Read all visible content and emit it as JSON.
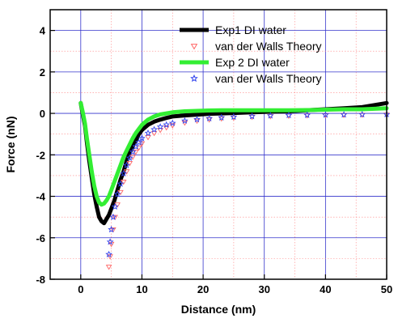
{
  "chart_data": {
    "type": "line",
    "xlabel": "Distance (nm)",
    "ylabel": "Force (nN)",
    "xlim": [
      -5,
      50
    ],
    "ylim": [
      -8,
      5
    ],
    "x_ticks": [
      0,
      10,
      20,
      30,
      40,
      50
    ],
    "y_ticks": [
      4,
      2,
      0,
      -2,
      -4,
      -6,
      -8
    ],
    "grid": true,
    "legend_position": "top-right",
    "series": [
      {
        "name": "Exp1 DI water",
        "style": "thick-line",
        "color": "#000000",
        "x": [
          0,
          0.3,
          0.7,
          1.0,
          1.4,
          1.8,
          2.2,
          2.6,
          3.0,
          3.4,
          3.8,
          4.2,
          4.6,
          5.0,
          5.5,
          6,
          6.5,
          7,
          7.5,
          8,
          8.5,
          9,
          9.5,
          10,
          11,
          12,
          13,
          14,
          15,
          17,
          19,
          21,
          23,
          25,
          28,
          31,
          34,
          37,
          40,
          43,
          46,
          48,
          50
        ],
        "y": [
          0.5,
          0.0,
          -0.6,
          -1.4,
          -2.3,
          -3.1,
          -3.9,
          -4.5,
          -5.0,
          -5.2,
          -5.3,
          -5.1,
          -4.9,
          -4.6,
          -4.2,
          -3.7,
          -3.2,
          -2.8,
          -2.3,
          -1.9,
          -1.6,
          -1.3,
          -1.0,
          -0.8,
          -0.55,
          -0.4,
          -0.3,
          -0.22,
          -0.15,
          -0.1,
          -0.06,
          -0.02,
          0.0,
          0.02,
          0.05,
          0.08,
          0.1,
          0.15,
          0.2,
          0.25,
          0.3,
          0.4,
          0.5
        ]
      },
      {
        "name": "van der Walls Theory",
        "style": "triangle-markers",
        "color": "#ff6666",
        "x": [
          4.6,
          4.8,
          5.0,
          5.3,
          5.6,
          6.0,
          6.5,
          7,
          7.5,
          8,
          8.5,
          9,
          9.5,
          10,
          11,
          12,
          13,
          14,
          15,
          17,
          19,
          21,
          23,
          25,
          28,
          31,
          34,
          37,
          40,
          43,
          46,
          50
        ],
        "y": [
          -7.4,
          -6.9,
          -6.3,
          -5.6,
          -5.0,
          -4.4,
          -3.8,
          -3.3,
          -2.8,
          -2.4,
          -2.1,
          -1.85,
          -1.65,
          -1.45,
          -1.15,
          -0.95,
          -0.8,
          -0.68,
          -0.58,
          -0.45,
          -0.36,
          -0.3,
          -0.25,
          -0.21,
          -0.17,
          -0.14,
          -0.12,
          -0.1,
          -0.09,
          -0.08,
          -0.07,
          -0.06
        ]
      },
      {
        "name": "Exp 2 DI water",
        "style": "thick-line",
        "color": "#33ee33",
        "x": [
          0,
          0.3,
          0.7,
          1.0,
          1.4,
          1.8,
          2.2,
          2.6,
          3.0,
          3.4,
          3.8,
          4.2,
          4.6,
          5.0,
          5.5,
          6,
          6.5,
          7,
          7.5,
          8,
          8.5,
          9,
          9.5,
          10,
          11,
          12,
          13,
          14,
          15,
          17,
          19,
          21,
          23,
          25,
          28,
          31,
          34,
          37,
          40,
          43,
          46,
          48,
          50
        ],
        "y": [
          0.5,
          0.1,
          -0.5,
          -1.2,
          -2.0,
          -2.8,
          -3.5,
          -4.0,
          -4.3,
          -4.4,
          -4.35,
          -4.2,
          -4.0,
          -3.7,
          -3.3,
          -2.9,
          -2.5,
          -2.1,
          -1.8,
          -1.5,
          -1.2,
          -0.95,
          -0.75,
          -0.55,
          -0.3,
          -0.15,
          -0.05,
          0.0,
          0.05,
          0.1,
          0.12,
          0.14,
          0.15,
          0.15,
          0.15,
          0.15,
          0.15,
          0.16,
          0.18,
          0.2,
          0.2,
          0.22,
          0.25
        ]
      },
      {
        "name": "van der Walls Theory",
        "style": "star-markers",
        "color": "#3344ee",
        "x": [
          4.6,
          4.8,
          5.0,
          5.3,
          5.6,
          6.0,
          6.5,
          7,
          7.5,
          8,
          8.5,
          9,
          9.5,
          10,
          11,
          12,
          13,
          14,
          15,
          17,
          19,
          21,
          23,
          25,
          28,
          31,
          34,
          37,
          40,
          43,
          46,
          50
        ],
        "y": [
          -6.8,
          -6.2,
          -5.6,
          -5.0,
          -4.5,
          -3.9,
          -3.4,
          -2.9,
          -2.5,
          -2.15,
          -1.85,
          -1.6,
          -1.4,
          -1.2,
          -0.95,
          -0.78,
          -0.65,
          -0.55,
          -0.47,
          -0.36,
          -0.29,
          -0.24,
          -0.2,
          -0.17,
          -0.14,
          -0.11,
          -0.09,
          -0.08,
          -0.07,
          -0.06,
          -0.055,
          -0.05
        ]
      }
    ]
  }
}
